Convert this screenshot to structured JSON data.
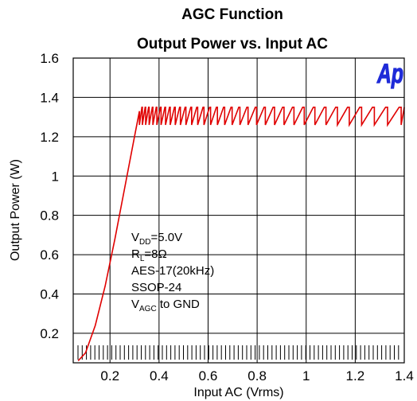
{
  "chart_data": {
    "type": "line",
    "title": "AGC Function",
    "subtitle": "Output Power vs. Input AC",
    "xlabel": "Input AC (Vrms)",
    "ylabel": "Output Power (W)",
    "xlim": [
      0.05,
      1.4
    ],
    "ylim": [
      0.05,
      1.6
    ],
    "x_ticks": [
      "0.2",
      "0.4",
      "0.6",
      "0.8",
      "1",
      "1.2",
      "1.4"
    ],
    "x_tick_values": [
      0.2,
      0.4,
      0.6,
      0.8,
      1.0,
      1.2,
      1.4
    ],
    "y_ticks": [
      "0.2",
      "0.4",
      "0.6",
      "0.8",
      "1",
      "1.2",
      "1.4",
      "1.6"
    ],
    "y_tick_values": [
      0.2,
      0.4,
      0.6,
      0.8,
      1.0,
      1.2,
      1.4,
      1.6
    ],
    "grid": true,
    "logo": "Ap",
    "line_color": "#e00000",
    "series": [
      {
        "rise": {
          "x": [
            0.07,
            0.1,
            0.14,
            0.18,
            0.22,
            0.26,
            0.3,
            0.32
          ],
          "y": [
            0.06,
            0.1,
            0.24,
            0.44,
            0.68,
            0.94,
            1.2,
            1.33
          ]
        },
        "saw": {
          "x_start": 0.32,
          "x_end": 1.4,
          "y_low": 1.26,
          "y_high": 1.35,
          "period_start": 0.012,
          "period_end": 0.058
        }
      }
    ],
    "annotation_lines": [
      {
        "base": "V",
        "sub": "DD",
        "rest": "=5.0V"
      },
      {
        "base": "R",
        "sub": "L",
        "rest": "=8Ω"
      },
      {
        "base": "AES-17(20kHz)",
        "sub": "",
        "rest": ""
      },
      {
        "base": "SSOP-24",
        "sub": "",
        "rest": ""
      },
      {
        "base": "V",
        "sub": "AGC",
        "rest": " to GND"
      }
    ]
  }
}
